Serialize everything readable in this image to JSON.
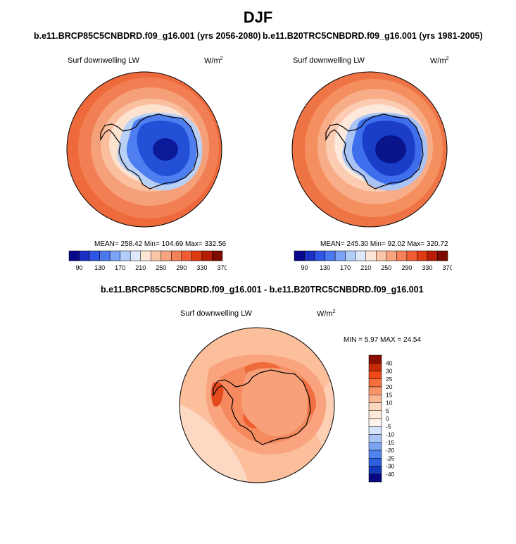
{
  "title": "DJF",
  "panel_left": {
    "title": "b.e11.BRCP85C5CNBDRD.f09_g16.001 (yrs 2056-2080)",
    "variable": "Surf downwelling LW",
    "units_base": "W/m",
    "units_exp": "2",
    "stats": "MEAN= 258.42  Min= 104.69  Max= 332.56"
  },
  "panel_right": {
    "title": "b.e11.B20TRC5CNBDRD.f09_g16.001 (yrs 1981-2005)",
    "variable": "Surf downwelling LW",
    "units_base": "W/m",
    "units_exp": "2",
    "stats": "MEAN= 245.30  Min= 92.02  Max= 320.72"
  },
  "panel_diff": {
    "title": "b.e11.BRCP85C5CNBDRD.f09_g16.001 - b.e11.B20TRC5CNBDRD.f09_g16.001",
    "variable": "Surf downwelling LW",
    "units_base": "W/m",
    "units_exp": "2",
    "stats": "MIN =  5.97 MAX =  24.54"
  },
  "colorbar_abs": {
    "labels": [
      "90",
      "130",
      "170",
      "210",
      "250",
      "290",
      "330",
      "370"
    ],
    "colors": [
      "#08088a",
      "#1a2fc4",
      "#2e55e6",
      "#4a78f0",
      "#7ba3f7",
      "#b3cdf9",
      "#dfe9fb",
      "#fde6d6",
      "#fbc6a6",
      "#f8a47e",
      "#f58158",
      "#f05d32",
      "#dd3b12",
      "#b51d06",
      "#7e0b00"
    ]
  },
  "colorbar_diff": {
    "labels": [
      "40",
      "30",
      "25",
      "20",
      "15",
      "10",
      "5",
      "0",
      "-5",
      "-10",
      "-15",
      "-20",
      "-25",
      "-30",
      "-40"
    ],
    "colors": [
      "#8a0d00",
      "#c52a07",
      "#ef4a18",
      "#f56f3e",
      "#f89468",
      "#fbb693",
      "#fdd6bf",
      "#fde8da",
      "#d4e2fb",
      "#a9c4f7",
      "#7ca3f2",
      "#5082ec",
      "#2e5fe0",
      "#1538b8",
      "#080883"
    ]
  }
}
